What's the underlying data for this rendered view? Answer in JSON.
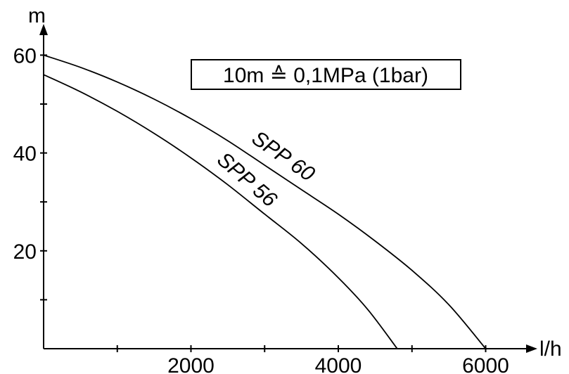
{
  "chart_data": {
    "type": "line",
    "xlabel": "l/h",
    "ylabel": "m",
    "xlim": [
      0,
      6500
    ],
    "ylim": [
      0,
      65
    ],
    "x_ticks": [
      1000,
      2000,
      3000,
      4000,
      5000,
      6000
    ],
    "x_tick_labels": [
      "",
      "2000",
      "",
      "4000",
      "",
      "6000"
    ],
    "y_ticks": [
      10,
      20,
      30,
      40,
      50,
      60
    ],
    "y_tick_labels": [
      "",
      "20",
      "",
      "40",
      "",
      "60"
    ],
    "annotation": "10m ≙ 0,1MPa (1bar)",
    "grid": false,
    "series": [
      {
        "name": "SPP 60",
        "x": [
          0,
          500,
          1000,
          1500,
          2000,
          2500,
          3000,
          3500,
          4000,
          4500,
          5000,
          5500,
          6000
        ],
        "y": [
          60,
          57.5,
          54.5,
          51,
          47,
          42.5,
          37.5,
          32.5,
          27.5,
          22,
          16,
          9,
          0
        ]
      },
      {
        "name": "SPP 56",
        "x": [
          0,
          500,
          1000,
          1500,
          2000,
          2500,
          3000,
          3500,
          4000,
          4400,
          4800
        ],
        "y": [
          56,
          52.5,
          48.5,
          44,
          39,
          33.5,
          27.5,
          21.5,
          14.5,
          8,
          0
        ]
      }
    ]
  }
}
